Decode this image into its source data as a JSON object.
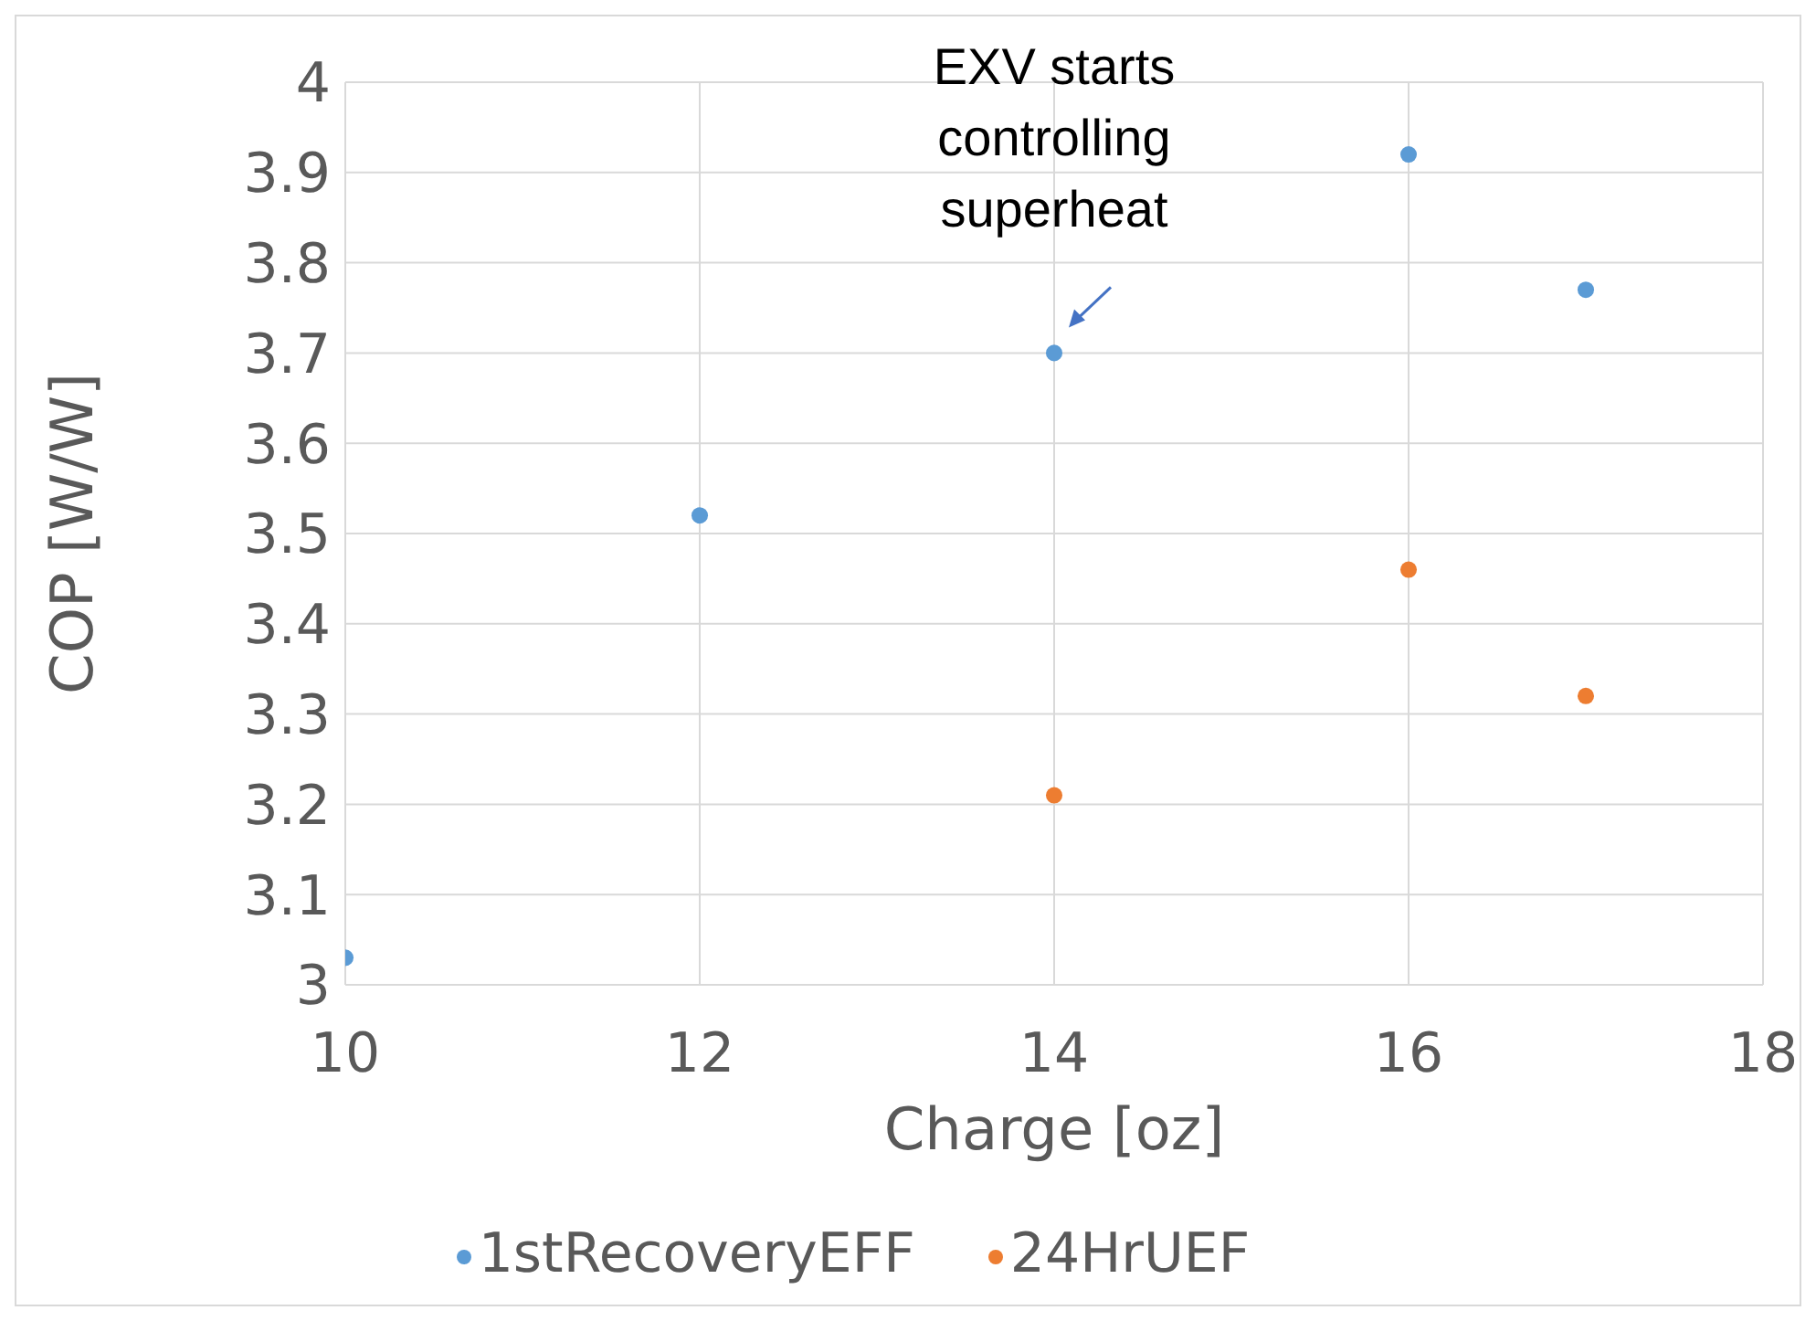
{
  "chart_data": {
    "type": "scatter",
    "xlabel": "Charge [oz]",
    "ylabel": "COP [W/W]",
    "xlim": [
      10,
      18
    ],
    "xticks": [
      10,
      12,
      14,
      16,
      18
    ],
    "ylim": [
      3,
      4
    ],
    "yticks": [
      3,
      3.1,
      3.2,
      3.3,
      3.4,
      3.5,
      3.6,
      3.7,
      3.8,
      3.9,
      4
    ],
    "grid": true,
    "legend": "bottom",
    "marker": "circle",
    "series": [
      {
        "name": "1stRecoveryEFF",
        "color": "#5b9bd5",
        "x": [
          10,
          12,
          14,
          16,
          17
        ],
        "values": [
          3.03,
          3.52,
          3.7,
          3.92,
          3.77
        ]
      },
      {
        "name": "24HrUEF",
        "color": "#ed7d31",
        "x": [
          14,
          16,
          17
        ],
        "values": [
          3.21,
          3.46,
          3.32
        ]
      }
    ],
    "annotations": [
      {
        "text": "EXV starts controlling superheat",
        "x": 14,
        "y": 3.7
      }
    ]
  }
}
